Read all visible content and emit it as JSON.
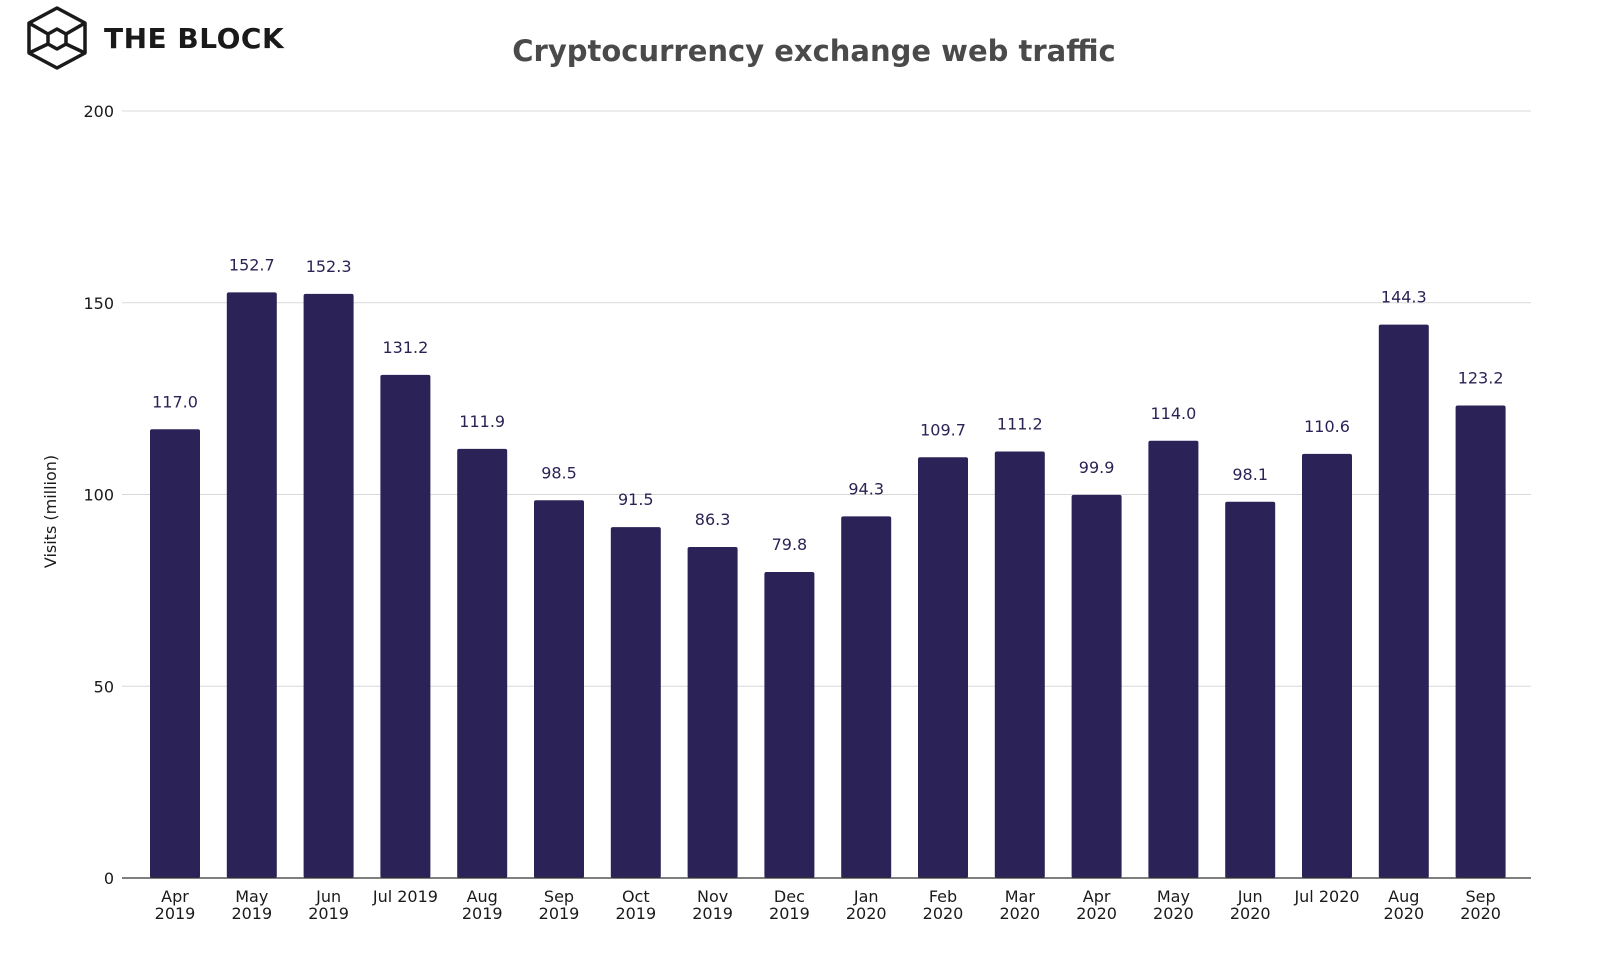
{
  "brand": {
    "name": "THE BLOCK",
    "icon": "the-block-cube-icon"
  },
  "chart_data": {
    "type": "bar",
    "title": "Cryptocurrency exchange web traffic",
    "xlabel": "",
    "ylabel": "Visits (million)",
    "ylim": [
      0,
      200
    ],
    "yticks": [
      0,
      50,
      100,
      150,
      200
    ],
    "grid": true,
    "legend": "none",
    "bar_color": "#2b2358",
    "categories": [
      [
        "Apr",
        "2019"
      ],
      [
        "May",
        "2019"
      ],
      [
        "Jun",
        "2019"
      ],
      [
        "Jul 2019"
      ],
      [
        "Aug",
        "2019"
      ],
      [
        "Sep",
        "2019"
      ],
      [
        "Oct",
        "2019"
      ],
      [
        "Nov",
        "2019"
      ],
      [
        "Dec",
        "2019"
      ],
      [
        "Jan",
        "2020"
      ],
      [
        "Feb",
        "2020"
      ],
      [
        "Mar",
        "2020"
      ],
      [
        "Apr",
        "2020"
      ],
      [
        "May",
        "2020"
      ],
      [
        "Jun",
        "2020"
      ],
      [
        "Jul 2020"
      ],
      [
        "Aug",
        "2020"
      ],
      [
        "Sep",
        "2020"
      ]
    ],
    "values": [
      117.0,
      152.7,
      152.3,
      131.2,
      111.9,
      98.5,
      91.5,
      86.3,
      79.8,
      94.3,
      109.7,
      111.2,
      99.9,
      114.0,
      98.1,
      110.6,
      144.3,
      123.2
    ],
    "data_labels": [
      "117.0",
      "152.7",
      "152.3",
      "131.2",
      "111.9",
      "98.5",
      "91.5",
      "86.3",
      "79.8",
      "94.3",
      "109.7",
      "111.2",
      "99.9",
      "114.0",
      "98.1",
      "110.6",
      "144.3",
      "123.2"
    ]
  }
}
